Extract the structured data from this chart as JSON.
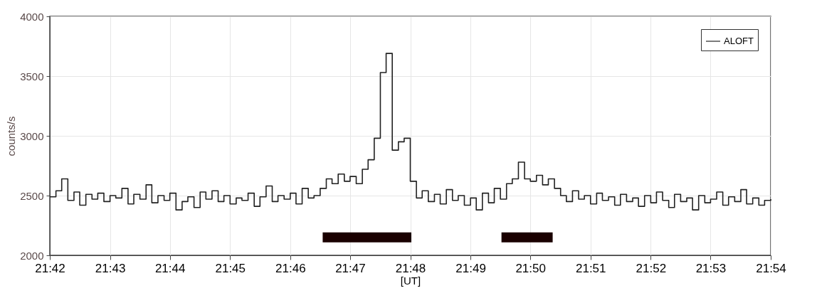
{
  "chart_data": {
    "type": "step",
    "xlabel": "[UT]",
    "ylabel": "counts/s",
    "xlim": [
      21.7,
      21.9
    ],
    "ylim": [
      2000,
      4000
    ],
    "xticks": [
      {
        "value": 21.7,
        "label": "21:42"
      },
      {
        "value": 21.7167,
        "label": "21:43"
      },
      {
        "value": 21.7333,
        "label": "21:44"
      },
      {
        "value": 21.75,
        "label": "21:45"
      },
      {
        "value": 21.7667,
        "label": "21:46"
      },
      {
        "value": 21.7833,
        "label": "21:47"
      },
      {
        "value": 21.8,
        "label": "21:48"
      },
      {
        "value": 21.8167,
        "label": "21:49"
      },
      {
        "value": 21.8333,
        "label": "21:50"
      },
      {
        "value": 21.85,
        "label": "21:51"
      },
      {
        "value": 21.8667,
        "label": "21:52"
      },
      {
        "value": 21.8833,
        "label": "21:53"
      },
      {
        "value": 21.9,
        "label": "21:54"
      }
    ],
    "yticks": [
      2000,
      2500,
      3000,
      3500,
      4000
    ],
    "grid": true,
    "legend": "top right",
    "series": [
      {
        "name": "ALOFT",
        "color": "#222222",
        "x": [
          21.7,
          21.7017,
          21.7033,
          21.705,
          21.7067,
          21.7083,
          21.71,
          21.7117,
          21.7133,
          21.715,
          21.7167,
          21.7183,
          21.72,
          21.7217,
          21.7233,
          21.725,
          21.7267,
          21.7283,
          21.73,
          21.7317,
          21.7333,
          21.735,
          21.7367,
          21.7383,
          21.74,
          21.7417,
          21.7433,
          21.745,
          21.7467,
          21.7483,
          21.75,
          21.7517,
          21.7533,
          21.755,
          21.7567,
          21.7583,
          21.76,
          21.7617,
          21.7633,
          21.765,
          21.7667,
          21.7683,
          21.77,
          21.7717,
          21.7733,
          21.775,
          21.7767,
          21.7783,
          21.78,
          21.7817,
          21.7833,
          21.785,
          21.7867,
          21.7883,
          21.79,
          21.7917,
          21.7933,
          21.795,
          21.7967,
          21.7983,
          21.8,
          21.8017,
          21.8033,
          21.805,
          21.8067,
          21.8083,
          21.81,
          21.8117,
          21.8133,
          21.815,
          21.8167,
          21.8183,
          21.82,
          21.8217,
          21.8233,
          21.825,
          21.8267,
          21.8283,
          21.83,
          21.8317,
          21.8333,
          21.835,
          21.8367,
          21.8383,
          21.84,
          21.8417,
          21.8433,
          21.845,
          21.8467,
          21.8483,
          21.85,
          21.8517,
          21.8533,
          21.855,
          21.8567,
          21.8583,
          21.86,
          21.8617,
          21.8633,
          21.865,
          21.8667,
          21.8683,
          21.87,
          21.8717,
          21.8733,
          21.875,
          21.8767,
          21.8783,
          21.88,
          21.8817,
          21.8833,
          21.885,
          21.8867,
          21.8883,
          21.89,
          21.8917,
          21.8933,
          21.895,
          21.8967,
          21.8983,
          21.9
        ],
        "values": [
          2490,
          2540,
          2640,
          2460,
          2530,
          2420,
          2510,
          2470,
          2520,
          2450,
          2500,
          2480,
          2560,
          2430,
          2510,
          2470,
          2590,
          2440,
          2500,
          2460,
          2520,
          2380,
          2450,
          2490,
          2400,
          2530,
          2470,
          2540,
          2450,
          2500,
          2430,
          2480,
          2460,
          2520,
          2410,
          2490,
          2580,
          2450,
          2500,
          2470,
          2520,
          2430,
          2560,
          2480,
          2500,
          2560,
          2640,
          2600,
          2680,
          2620,
          2660,
          2600,
          2720,
          2800,
          2980,
          3530,
          3690,
          2880,
          2950,
          2980,
          2620,
          2480,
          2540,
          2450,
          2510,
          2430,
          2550,
          2460,
          2500,
          2420,
          2480,
          2380,
          2520,
          2440,
          2560,
          2470,
          2600,
          2640,
          2780,
          2640,
          2620,
          2670,
          2590,
          2640,
          2560,
          2500,
          2450,
          2540,
          2470,
          2500,
          2430,
          2520,
          2460,
          2490,
          2420,
          2510,
          2450,
          2480,
          2410,
          2500,
          2440,
          2530,
          2460,
          2400,
          2510,
          2450,
          2480,
          2380,
          2500,
          2440,
          2470,
          2530,
          2420,
          2490,
          2450,
          2550,
          2430,
          2480,
          2420,
          2460,
          2470
        ]
      },
      {
        "color": "#1a0000",
        "type": "line",
        "x": [
          21.7757,
          21.8003,
          21.81,
          21.8253,
          21.8395
        ],
        "values": [
          2150,
          2150,
          null,
          2150,
          2150
        ]
      }
    ]
  }
}
